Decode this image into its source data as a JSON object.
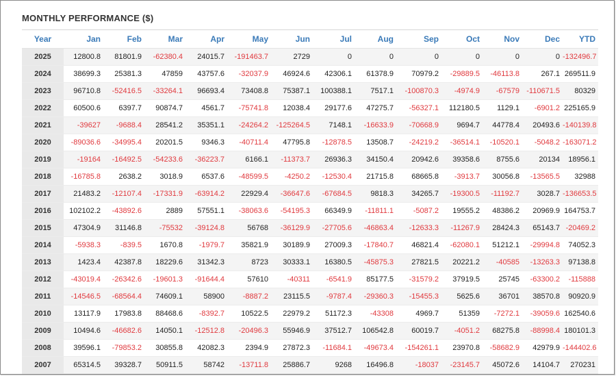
{
  "widget": {
    "title": "MONTHLY PERFORMANCE ($)"
  },
  "table": {
    "columns": [
      "Year",
      "Jan",
      "Feb",
      "Mar",
      "Apr",
      "May",
      "Jun",
      "Jul",
      "Aug",
      "Sep",
      "Oct",
      "Nov",
      "Dec",
      "YTD"
    ],
    "rows": [
      [
        "2025",
        "12800.8",
        "81801.9",
        "-62380.4",
        "24015.7",
        "-191463.7",
        "2729",
        "0",
        "0",
        "0",
        "0",
        "0",
        "0",
        "-132496.7"
      ],
      [
        "2024",
        "38699.3",
        "25381.3",
        "47859",
        "43757.6",
        "-32037.9",
        "46924.6",
        "42306.1",
        "61378.9",
        "70979.2",
        "-29889.5",
        "-46113.8",
        "267.1",
        "269511.9"
      ],
      [
        "2023",
        "96710.8",
        "-52416.5",
        "-33264.1",
        "96693.4",
        "73408.8",
        "75387.1",
        "100388.1",
        "7517.1",
        "-100870.3",
        "-4974.9",
        "-67579",
        "-110671.5",
        "80329"
      ],
      [
        "2022",
        "60500.6",
        "6397.7",
        "90874.7",
        "4561.7",
        "-75741.8",
        "12038.4",
        "29177.6",
        "47275.7",
        "-56327.1",
        "112180.5",
        "1129.1",
        "-6901.2",
        "225165.9"
      ],
      [
        "2021",
        "-39627",
        "-9688.4",
        "28541.2",
        "35351.1",
        "-24264.2",
        "-125264.5",
        "7148.1",
        "-16633.9",
        "-70668.9",
        "9694.7",
        "44778.4",
        "20493.6",
        "-140139.8"
      ],
      [
        "2020",
        "-89036.6",
        "-34995.4",
        "20201.5",
        "9346.3",
        "-40711.4",
        "47795.8",
        "-12878.5",
        "13508.7",
        "-24219.2",
        "-36514.1",
        "-10520.1",
        "-5048.2",
        "-163071.2"
      ],
      [
        "2019",
        "-19164",
        "-16492.5",
        "-54233.6",
        "-36223.7",
        "6166.1",
        "-11373.7",
        "26936.3",
        "34150.4",
        "20942.6",
        "39358.6",
        "8755.6",
        "20134",
        "18956.1"
      ],
      [
        "2018",
        "-16785.8",
        "2638.2",
        "3018.9",
        "6537.6",
        "-48599.5",
        "-4250.2",
        "-12530.4",
        "21715.8",
        "68665.8",
        "-3913.7",
        "30056.8",
        "-13565.5",
        "32988"
      ],
      [
        "2017",
        "21483.2",
        "-12107.4",
        "-17331.9",
        "-63914.2",
        "22929.4",
        "-36647.6",
        "-67684.5",
        "9818.3",
        "34265.7",
        "-19300.5",
        "-11192.7",
        "3028.7",
        "-136653.5"
      ],
      [
        "2016",
        "102102.2",
        "-43892.6",
        "2889",
        "57551.1",
        "-38063.6",
        "-54195.3",
        "66349.9",
        "-11811.1",
        "-5087.2",
        "19555.2",
        "48386.2",
        "20969.9",
        "164753.7"
      ],
      [
        "2015",
        "47304.9",
        "31146.8",
        "-75532",
        "-39124.8",
        "56768",
        "-36129.9",
        "-27705.6",
        "-46863.4",
        "-12633.3",
        "-11267.9",
        "28424.3",
        "65143.7",
        "-20469.2"
      ],
      [
        "2014",
        "-5938.3",
        "-839.5",
        "1670.8",
        "-1979.7",
        "35821.9",
        "30189.9",
        "27009.3",
        "-17840.7",
        "46821.4",
        "-62080.1",
        "51212.1",
        "-29994.8",
        "74052.3"
      ],
      [
        "2013",
        "1423.4",
        "42387.8",
        "18229.6",
        "31342.3",
        "8723",
        "30333.1",
        "16380.5",
        "-45875.3",
        "27821.5",
        "20221.2",
        "-40585",
        "-13263.3",
        "97138.8"
      ],
      [
        "2012",
        "-43019.4",
        "-26342.6",
        "-19601.3",
        "-91644.4",
        "57610",
        "-40311",
        "-6541.9",
        "85177.5",
        "-31579.2",
        "37919.5",
        "25745",
        "-63300.2",
        "-115888"
      ],
      [
        "2011",
        "-14546.5",
        "-68564.4",
        "74609.1",
        "58900",
        "-8887.2",
        "23115.5",
        "-9787.4",
        "-29360.3",
        "-15455.3",
        "5625.6",
        "36701",
        "38570.8",
        "90920.9"
      ],
      [
        "2010",
        "13117.9",
        "17983.8",
        "88468.6",
        "-8392.7",
        "10522.5",
        "22979.2",
        "51172.3",
        "-43308",
        "4969.7",
        "51359",
        "-7272.1",
        "-39059.6",
        "162540.6"
      ],
      [
        "2009",
        "10494.6",
        "-46682.6",
        "14050.1",
        "-12512.8",
        "-20496.3",
        "55946.9",
        "37512.7",
        "106542.8",
        "60019.7",
        "-4051.2",
        "68275.8",
        "-88998.4",
        "180101.3"
      ],
      [
        "2008",
        "39596.1",
        "-79853.2",
        "30855.8",
        "42082.3",
        "2394.9",
        "27872.3",
        "-11684.1",
        "-49673.4",
        "-154261.1",
        "23970.8",
        "-58682.9",
        "42979.9",
        "-144402.6"
      ],
      [
        "2007",
        "65314.5",
        "39328.7",
        "50911.5",
        "58742",
        "-13711.8",
        "25886.7",
        "9268",
        "16496.8",
        "-18037",
        "-23145.7",
        "45072.6",
        "14104.7",
        "270231"
      ]
    ]
  },
  "colors": {
    "header_text": "#3a7ab8",
    "negative": "#e0393e",
    "positive": "#222222",
    "stripe": "#f4f4f4",
    "year_cell": "#e9e9e9"
  }
}
